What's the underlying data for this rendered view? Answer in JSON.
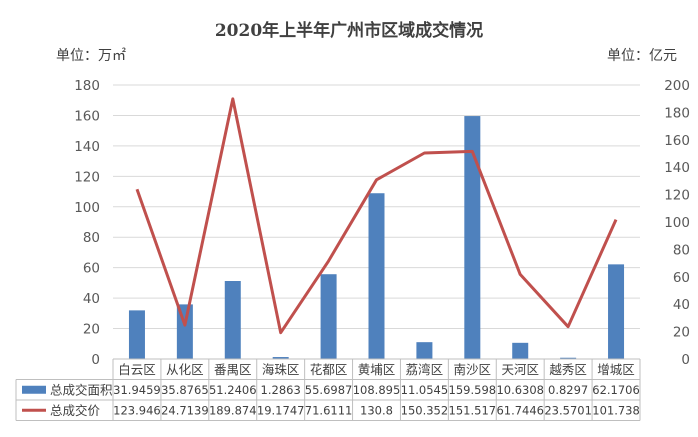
{
  "chart_data": {
    "type": "bar+line",
    "title": "2020年上半年广州市区域成交情况",
    "left_unit": "单位：万㎡",
    "right_unit": "单位：亿元",
    "categories": [
      "白云区",
      "从化区",
      "番禺区",
      "海珠区",
      "花都区",
      "黄埔区",
      "荔湾区",
      "南沙区",
      "天河区",
      "越秀区",
      "增城区"
    ],
    "series": [
      {
        "name": "总成交面积",
        "type": "bar",
        "axis": "left",
        "color": "#4f81bd",
        "values": [
          31.9459,
          35.8765,
          51.2406,
          1.2863,
          55.6987,
          108.895,
          11.0545,
          159.598,
          10.6308,
          0.8297,
          62.1706
        ],
        "labels": [
          "31.9459",
          "35.8765",
          "51.2406",
          "1.2863",
          "55.6987",
          "108.895",
          "11.0545",
          "159.598",
          "10.6308",
          "0.8297",
          "62.1706"
        ]
      },
      {
        "name": "总成交价",
        "type": "line",
        "axis": "right",
        "color": "#c0504d",
        "values": [
          123.946,
          24.7139,
          189.874,
          19.1747,
          71.6111,
          130.8,
          150.352,
          151.517,
          61.7446,
          23.5701,
          101.738
        ],
        "labels": [
          "123.946",
          "24.7139",
          "189.874",
          "19.1747",
          "71.6111",
          "130.8",
          "150.352",
          "151.517",
          "61.7446",
          "23.5701",
          "101.738"
        ]
      }
    ],
    "left_axis": {
      "min": 0,
      "max": 180,
      "step": 20,
      "ticks": [
        "0",
        "20",
        "40",
        "60",
        "80",
        "100",
        "120",
        "140",
        "160",
        "180"
      ]
    },
    "right_axis": {
      "min": 0,
      "max": 200,
      "step": 20,
      "ticks": [
        "0",
        "20",
        "40",
        "60",
        "80",
        "100",
        "120",
        "140",
        "160",
        "180",
        "200"
      ]
    },
    "grid": true,
    "legend": "data-table"
  }
}
